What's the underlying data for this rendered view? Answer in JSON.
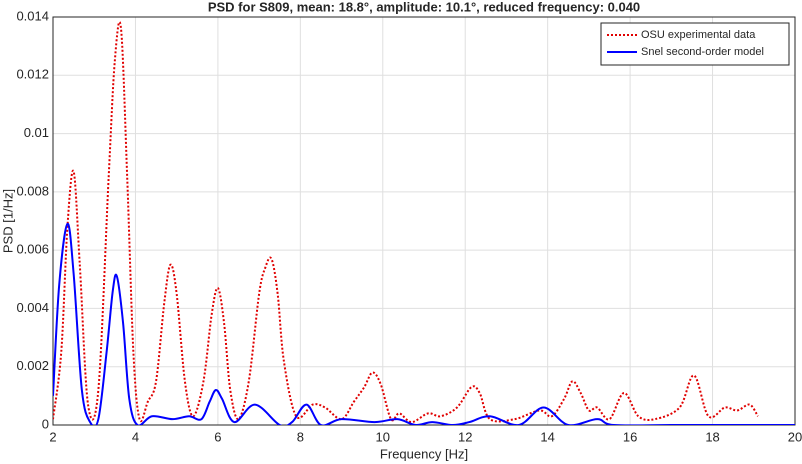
{
  "chart_data": {
    "type": "line",
    "title": "PSD for S809, mean: 18.8°, amplitude:  10.1°, reduced  frequency: 0.040",
    "x_label": "Frequency [Hz]",
    "y_label": "PSD [1/Hz]",
    "xlim": [
      2,
      20
    ],
    "xticks": [
      2,
      4,
      6,
      8,
      10,
      12,
      14,
      16,
      18,
      20
    ],
    "ylim": [
      0,
      0.014
    ],
    "yticks": [
      0,
      0.002,
      0.004,
      0.006,
      0.008,
      0.01,
      0.012,
      0.014
    ],
    "grid": true,
    "legend": "upper right",
    "series": [
      {
        "name": "OSU experimental data",
        "color": "#e00000",
        "style": "dotted",
        "x": [
          2,
          2.2,
          2.35,
          2.5,
          2.65,
          2.85,
          3.1,
          3.35,
          3.5,
          3.65,
          3.8,
          3.95,
          4.1,
          4.3,
          4.5,
          4.7,
          4.85,
          5.0,
          5.2,
          5.4,
          5.65,
          5.85,
          6.0,
          6.15,
          6.3,
          6.5,
          6.75,
          7.0,
          7.15,
          7.3,
          7.45,
          7.6,
          7.9,
          8.3,
          8.6,
          9.0,
          9.3,
          9.55,
          9.75,
          9.95,
          10.2,
          10.4,
          10.7,
          11.1,
          11.4,
          11.8,
          12.15,
          12.35,
          12.6,
          13.2,
          13.8,
          14.1,
          14.4,
          14.6,
          14.8,
          15.0,
          15.2,
          15.5,
          15.85,
          16.2,
          16.6,
          17.2,
          17.55,
          17.9,
          18.3,
          18.6,
          18.9,
          19.1
        ],
        "values": [
          0.0002,
          0.0025,
          0.0068,
          0.0087,
          0.0055,
          0.0007,
          0.0012,
          0.0085,
          0.0125,
          0.0136,
          0.0085,
          0.0025,
          0.0002,
          0.0008,
          0.0015,
          0.0042,
          0.0055,
          0.0045,
          0.0015,
          0.0003,
          0.0015,
          0.0038,
          0.0047,
          0.0035,
          0.0012,
          0.0002,
          0.0015,
          0.0045,
          0.0054,
          0.0057,
          0.0045,
          0.0022,
          0.0003,
          0.0007,
          0.0006,
          0.0002,
          0.0008,
          0.0013,
          0.0018,
          0.0014,
          0.0002,
          0.0004,
          0.0001,
          0.0004,
          0.0003,
          0.0006,
          0.0013,
          0.0011,
          0.0002,
          0.0002,
          0.0005,
          0.0003,
          0.0009,
          0.0015,
          0.0011,
          0.0005,
          0.0006,
          0.0002,
          0.0011,
          0.0003,
          0.0002,
          0.0006,
          0.0017,
          0.0003,
          0.0006,
          0.0005,
          0.0007,
          0.0003
        ]
      },
      {
        "name": "Snel second-order model",
        "color": "#0000ff",
        "style": "solid",
        "x": [
          2,
          2.15,
          2.35,
          2.5,
          2.7,
          2.9,
          3.1,
          3.3,
          3.45,
          3.55,
          3.7,
          3.85,
          4.05,
          4.4,
          4.9,
          5.3,
          5.6,
          5.8,
          5.95,
          6.1,
          6.4,
          6.9,
          7.5,
          7.8,
          8.15,
          8.5,
          9.0,
          9.8,
          10.35,
          10.8,
          11.2,
          11.7,
          12.1,
          12.6,
          13.3,
          13.9,
          14.5,
          15.2,
          15.6,
          17,
          18.5,
          20
        ],
        "values": [
          0.001,
          0.0048,
          0.0069,
          0.0052,
          0.0012,
          0.0001,
          0.0002,
          0.0025,
          0.0046,
          0.0051,
          0.0035,
          0.0009,
          0,
          0.0003,
          0.0002,
          0.0003,
          0.0002,
          0.0008,
          0.0012,
          0.0009,
          0.0001,
          0.0007,
          0,
          0.0001,
          0.0007,
          0,
          0.0002,
          0.0001,
          0.0002,
          0,
          0.0001,
          0,
          0.0001,
          0.0003,
          0,
          0.0006,
          0,
          0.0002,
          0,
          0,
          0,
          0
        ]
      }
    ]
  }
}
